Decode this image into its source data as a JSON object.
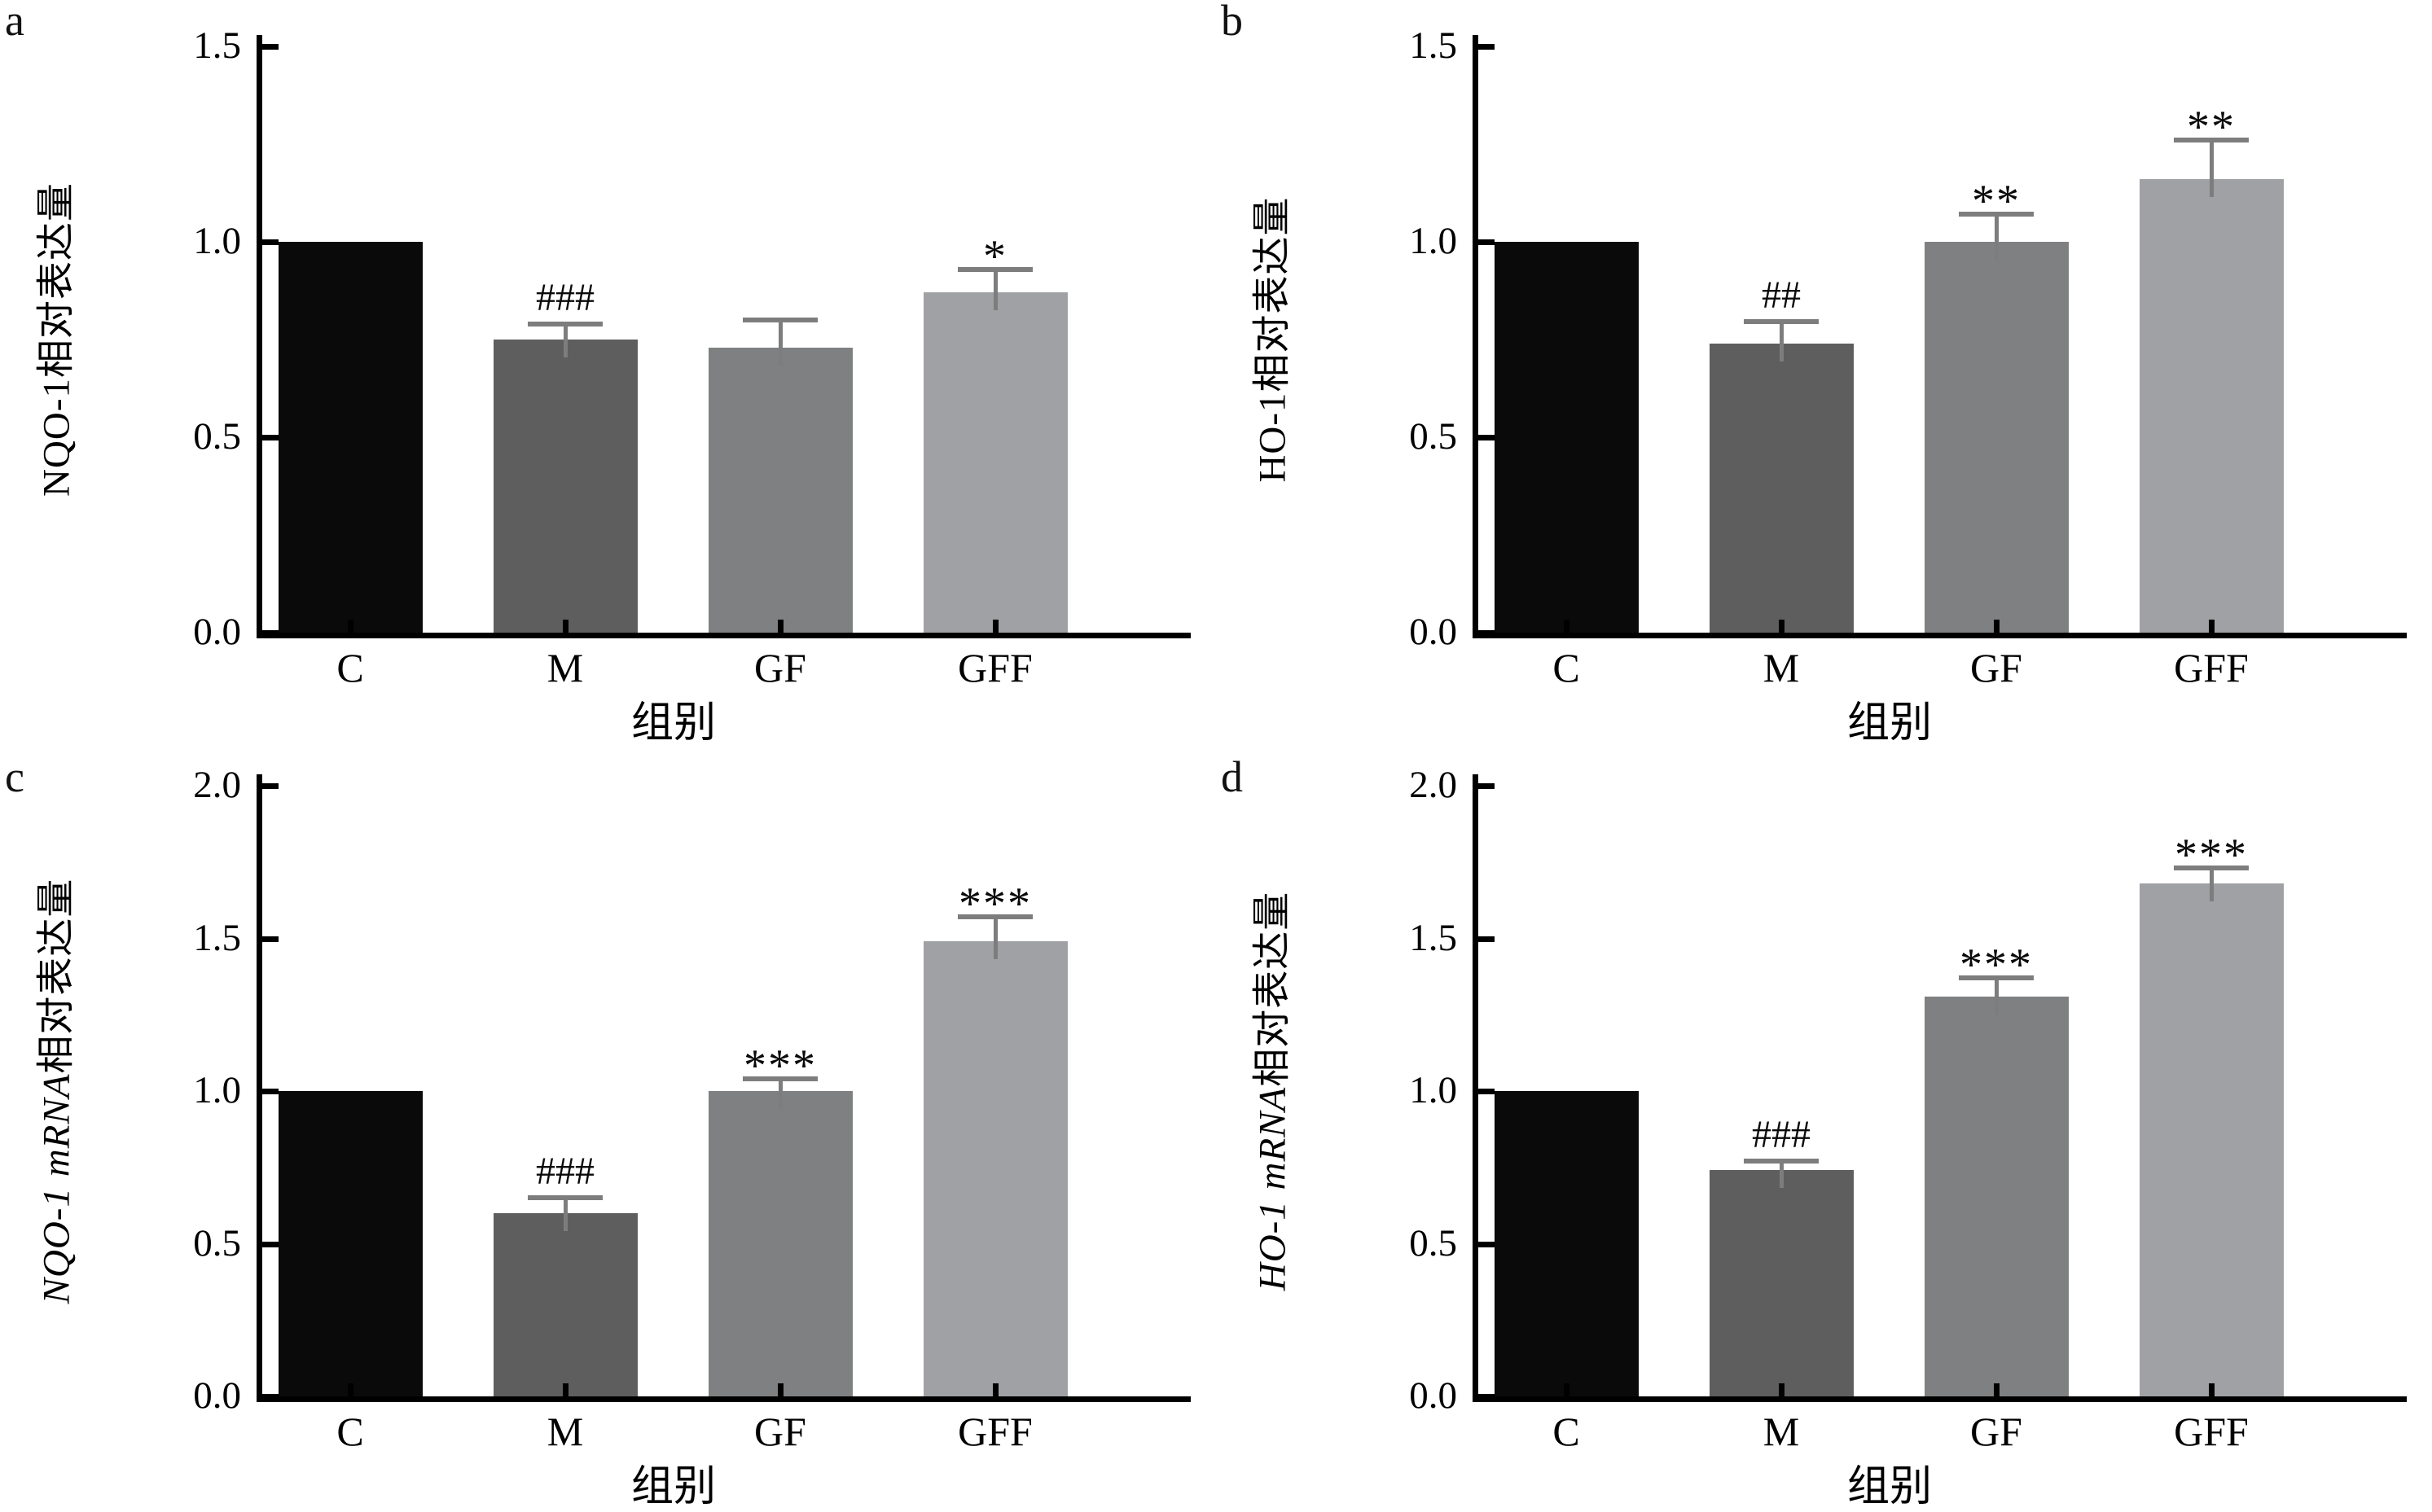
{
  "figure": {
    "panel_letters": [
      "a",
      "b",
      "c",
      "d"
    ],
    "error_bar_color": "#7d7d7d",
    "annotation_color": "#0a0a0a",
    "axis_color": "#000000"
  },
  "chart_data": [
    {
      "panel": "a",
      "type": "bar",
      "title": "",
      "ylabel": {
        "gene": "NQO-1",
        "suffix": "相对表达量",
        "italic": false
      },
      "xlabel": "组别",
      "categories": [
        "C",
        "M",
        "GF",
        "GFF"
      ],
      "values": [
        1.0,
        0.75,
        0.73,
        0.87
      ],
      "errors": [
        0,
        0.04,
        0.07,
        0.06
      ],
      "annotations": [
        "",
        "###",
        "",
        "*"
      ],
      "bar_colors": [
        "#0a0a0a",
        "#5e5e5e",
        "#7f8081",
        "#a0a1a5"
      ],
      "ylim": [
        0,
        1.5
      ],
      "yticks": [
        "1.5",
        "1.0",
        "0.5",
        "0.0"
      ],
      "grid": false,
      "legend": null
    },
    {
      "panel": "b",
      "type": "bar",
      "title": "",
      "ylabel": {
        "gene": "HO-1",
        "suffix": "相对表达量",
        "italic": false
      },
      "xlabel": "组别",
      "categories": [
        "C",
        "M",
        "GF",
        "GFF"
      ],
      "values": [
        1.0,
        0.74,
        1.0,
        1.16
      ],
      "errors": [
        0,
        0.055,
        0.07,
        0.1
      ],
      "annotations": [
        "",
        "##",
        "**",
        "**"
      ],
      "bar_colors": [
        "#0a0a0a",
        "#5e5e5e",
        "#7f8081",
        "#a0a1a5"
      ],
      "ylim": [
        0,
        1.5
      ],
      "yticks": [
        "1.5",
        "1.0",
        "0.5",
        "0.0"
      ],
      "grid": false,
      "legend": null
    },
    {
      "panel": "c",
      "type": "bar",
      "title": "",
      "ylabel": {
        "gene": "NQO-1 mRNA",
        "suffix": "相对表达量",
        "italic": true
      },
      "xlabel": "组别",
      "categories": [
        "C",
        "M",
        "GF",
        "GFF"
      ],
      "values": [
        1.0,
        0.6,
        1.0,
        1.49
      ],
      "errors": [
        0,
        0.05,
        0.04,
        0.08
      ],
      "annotations": [
        "",
        "###",
        "***",
        "***"
      ],
      "bar_colors": [
        "#0a0a0a",
        "#5e5e5e",
        "#7f8081",
        "#a0a1a5"
      ],
      "ylim": [
        0,
        2.0
      ],
      "yticks": [
        "2.0",
        "1.5",
        "1.0",
        "0.5",
        "0.0"
      ],
      "grid": false,
      "legend": null
    },
    {
      "panel": "d",
      "type": "bar",
      "title": "",
      "ylabel": {
        "gene": "HO-1 mRNA",
        "suffix": "相对表达量",
        "italic": true
      },
      "xlabel": "组别",
      "categories": [
        "C",
        "M",
        "GF",
        "GFF"
      ],
      "values": [
        1.0,
        0.74,
        1.31,
        1.68
      ],
      "errors": [
        0,
        0.03,
        0.06,
        0.05
      ],
      "annotations": [
        "",
        "###",
        "***",
        "***"
      ],
      "bar_colors": [
        "#0a0a0a",
        "#5e5e5e",
        "#7f8081",
        "#a0a1a5"
      ],
      "ylim": [
        0,
        2.0
      ],
      "yticks": [
        "2.0",
        "1.5",
        "1.0",
        "0.5",
        "0.0"
      ],
      "grid": false,
      "legend": null
    }
  ]
}
